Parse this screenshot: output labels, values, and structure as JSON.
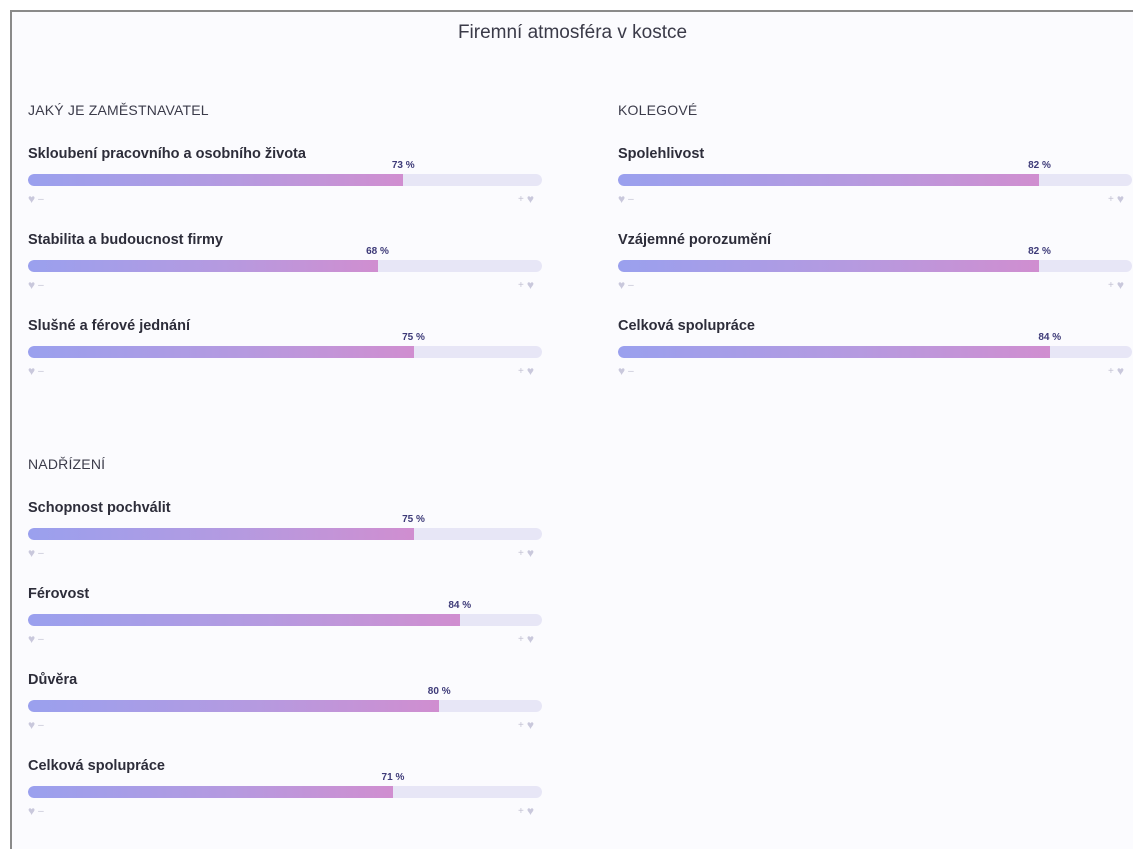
{
  "page": {
    "title": "Firemní atmosféra v kostce"
  },
  "sections": [
    {
      "title": "JAKÝ JE ZAMĚSTNAVATEL",
      "metrics": [
        {
          "label": "Skloubení pracovního a osobního života",
          "value": 73,
          "value_text": "73 %"
        },
        {
          "label": "Stabilita a budoucnost firmy",
          "value": 68,
          "value_text": "68 %"
        },
        {
          "label": "Slušné a férové jednání",
          "value": 75,
          "value_text": "75 %"
        }
      ]
    },
    {
      "title": "KOLEGOVÉ",
      "metrics": [
        {
          "label": "Spolehlivost",
          "value": 82,
          "value_text": "82 %"
        },
        {
          "label": "Vzájemné porozumění",
          "value": 82,
          "value_text": "82 %"
        },
        {
          "label": "Celková spolupráce",
          "value": 84,
          "value_text": "84 %"
        }
      ]
    },
    {
      "title": "NADŘÍZENÍ",
      "metrics": [
        {
          "label": "Schopnost pochválit",
          "value": 75,
          "value_text": "75 %"
        },
        {
          "label": "Férovost",
          "value": 84,
          "value_text": "84 %"
        },
        {
          "label": "Důvěra",
          "value": 80,
          "value_text": "80 %"
        },
        {
          "label": "Celková spolupráce",
          "value": 71,
          "value_text": "71 %"
        }
      ]
    }
  ],
  "scale": {
    "low_symbol": "–",
    "high_symbol": "+",
    "icon": "heart-icon"
  },
  "colors": {
    "fill_start": "#9aa0ee",
    "fill_end": "#d08ed0",
    "track": "#e7e6f6",
    "value_text": "#3d3a78"
  }
}
